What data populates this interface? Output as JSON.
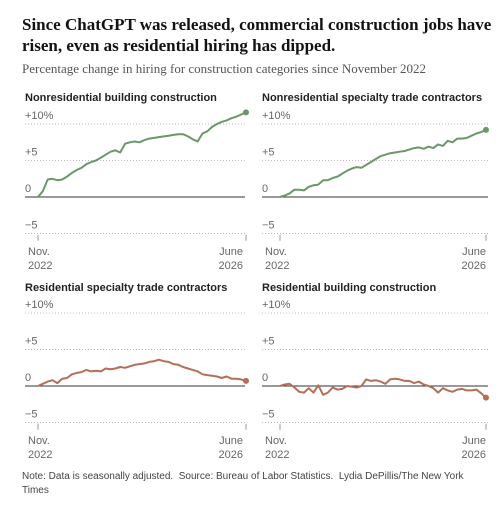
{
  "header": {
    "title": "Since ChatGPT was released, commercial construction jobs have risen, even as residential hiring has dipped.",
    "subtitle": "Percentage change in hiring for construction categories since November 2022"
  },
  "note": "Note: Data is seasonally adjusted.  Source: Bureau of Labor Statistics.  Lydia DePillis/The New York Times",
  "chart_data": [
    {
      "type": "line",
      "title": "Nonresidential building construction",
      "color": "#6b976a",
      "values": [
        0,
        0.8,
        2.4,
        2.5,
        2.3,
        2.4,
        2.8,
        3.3,
        3.7,
        4.0,
        4.5,
        4.8,
        5.0,
        5.4,
        5.8,
        6.2,
        6.4,
        6.1,
        7.3,
        7.5,
        7.6,
        7.5,
        7.8,
        8.0,
        8.1,
        8.2,
        8.3,
        8.4,
        8.5,
        8.6,
        8.6,
        8.3,
        7.9,
        7.6,
        8.7,
        9.0,
        9.6,
        10.0,
        10.3,
        10.5,
        10.8,
        11.0,
        11.3,
        11.6
      ],
      "xlim": [
        0,
        43
      ],
      "xticks": [
        {
          "value": 0,
          "label": [
            "Nov.",
            "2022"
          ]
        },
        {
          "value": 43,
          "label": [
            "June",
            "2026"
          ]
        }
      ],
      "ylim": [
        -6,
        12
      ],
      "yticks": [
        {
          "value": 10,
          "label": "+10%"
        },
        {
          "value": 5,
          "label": "+5"
        },
        0,
        {
          "value": -5,
          "label": "−5"
        }
      ]
    },
    {
      "type": "line",
      "title": "Nonresidential specialty trade contractors",
      "color": "#6b976a",
      "values": [
        0,
        0.2,
        0.5,
        1.0,
        1.0,
        0.9,
        1.4,
        1.6,
        1.7,
        2.3,
        2.3,
        2.6,
        2.8,
        3.2,
        3.6,
        3.9,
        4.1,
        4.0,
        4.4,
        4.8,
        5.2,
        5.6,
        5.8,
        6.0,
        6.1,
        6.2,
        6.3,
        6.5,
        6.7,
        6.8,
        6.6,
        6.9,
        6.7,
        7.2,
        7.0,
        7.7,
        7.5,
        8.0,
        8.0,
        8.1,
        8.4,
        8.7,
        8.9,
        9.2
      ],
      "xlim": [
        0,
        43
      ],
      "xticks": [
        {
          "value": 0,
          "label": [
            "Nov.",
            "2022"
          ]
        },
        {
          "value": 43,
          "label": [
            "June",
            "2026"
          ]
        }
      ],
      "ylim": [
        -6,
        12
      ],
      "yticks": [
        {
          "value": 10,
          "label": "+10%"
        },
        {
          "value": 5,
          "label": "+5"
        },
        0,
        {
          "value": -5,
          "label": "−5"
        }
      ]
    },
    {
      "type": "line",
      "title": "Residential specialty trade contractors",
      "color": "#b36f58",
      "values": [
        0,
        0.3,
        0.6,
        0.8,
        0.4,
        1.0,
        1.1,
        1.6,
        1.8,
        1.9,
        2.2,
        2.0,
        2.1,
        2.0,
        2.4,
        2.3,
        2.4,
        2.6,
        2.5,
        2.7,
        2.9,
        3.0,
        3.1,
        3.3,
        3.4,
        3.6,
        3.4,
        3.3,
        3.0,
        2.9,
        2.6,
        2.4,
        2.2,
        2.0,
        1.6,
        1.5,
        1.4,
        1.3,
        1.1,
        1.3,
        1.0,
        1.0,
        0.9,
        0.7
      ],
      "xlim": [
        0,
        43
      ],
      "xticks": [
        {
          "value": 0,
          "label": [
            "Nov.",
            "2022"
          ]
        },
        {
          "value": 43,
          "label": [
            "June",
            "2026"
          ]
        }
      ],
      "ylim": [
        -6,
        12
      ],
      "yticks": [
        {
          "value": 10,
          "label": "+10%"
        },
        {
          "value": 5,
          "label": "+5"
        },
        0,
        {
          "value": -5,
          "label": "−5"
        }
      ]
    },
    {
      "type": "line",
      "title": "Residential building construction",
      "color": "#b36f58",
      "values": [
        0,
        0.2,
        0.3,
        -0.2,
        -0.8,
        -0.9,
        -0.3,
        -0.9,
        0.1,
        -1.2,
        -0.9,
        -0.2,
        -0.5,
        -0.4,
        0.0,
        -0.1,
        -0.2,
        0.0,
        0.9,
        0.7,
        0.8,
        0.6,
        0.3,
        0.9,
        1.0,
        0.9,
        0.7,
        0.7,
        0.4,
        0.6,
        0.2,
        0.0,
        -0.3,
        -0.9,
        -0.3,
        -0.6,
        -0.8,
        -0.5,
        -0.4,
        -0.6,
        -0.6,
        -0.5,
        -1.0,
        -1.6
      ],
      "xlim": [
        0,
        43
      ],
      "xticks": [
        {
          "value": 0,
          "label": [
            "Nov.",
            "2022"
          ]
        },
        {
          "value": 43,
          "label": [
            "June",
            "2026"
          ]
        }
      ],
      "ylim": [
        -6,
        12
      ],
      "yticks": [
        {
          "value": 10,
          "label": "+10%"
        },
        {
          "value": 5,
          "label": "+5"
        },
        0,
        {
          "value": -5,
          "label": "−5"
        }
      ]
    }
  ]
}
